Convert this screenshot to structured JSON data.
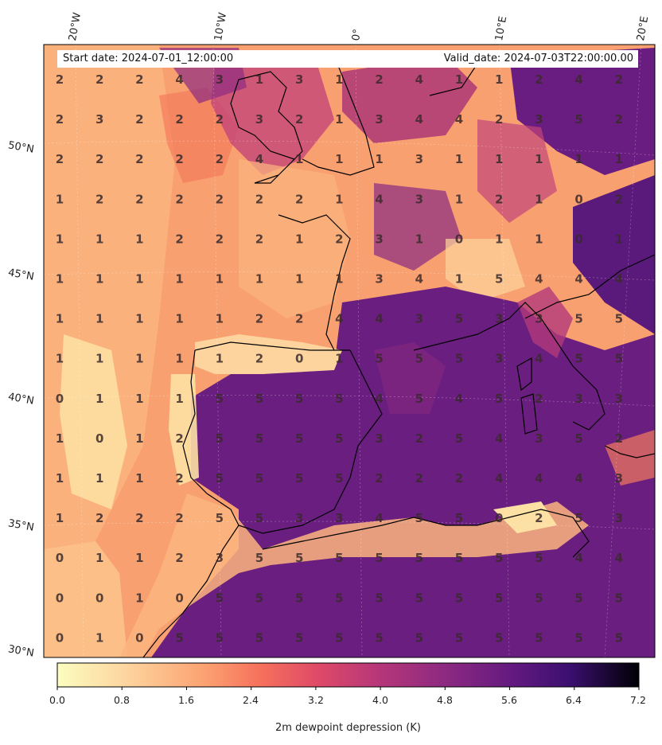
{
  "header": {
    "start_date": "Start date: 2024-07-01_12:00:00",
    "valid_date": "Valid_date: 2024-07-03T22:00:00.00"
  },
  "axes": {
    "lon_labels": [
      "20°W",
      "10°W",
      "0°",
      "10°E",
      "20°E"
    ],
    "lat_labels": [
      "50°N",
      "45°N",
      "40°N",
      "35°N",
      "30°N"
    ]
  },
  "colorbar": {
    "label": "2m dewpoint depression (K)",
    "ticks": [
      "0.0",
      "0.8",
      "1.6",
      "2.4",
      "3.2",
      "4.0",
      "4.8",
      "5.6",
      "6.4",
      "7.2"
    ],
    "min": 0.0,
    "max": 7.2,
    "colormap": "magma_r"
  },
  "grid_values": [
    [
      2,
      2,
      2,
      4,
      3,
      1,
      3,
      1,
      2,
      4,
      1,
      1,
      2,
      4,
      2
    ],
    [
      2,
      3,
      2,
      2,
      2,
      3,
      2,
      1,
      3,
      4,
      4,
      2,
      3,
      5,
      2
    ],
    [
      2,
      2,
      2,
      2,
      2,
      4,
      1,
      1,
      1,
      3,
      1,
      1,
      1,
      1,
      1
    ],
    [
      1,
      2,
      2,
      2,
      2,
      2,
      2,
      1,
      4,
      3,
      1,
      2,
      1,
      0,
      2
    ],
    [
      1,
      1,
      1,
      2,
      2,
      2,
      1,
      2,
      3,
      1,
      0,
      1,
      1,
      0,
      1
    ],
    [
      1,
      1,
      1,
      1,
      1,
      1,
      1,
      1,
      3,
      4,
      1,
      5,
      4,
      4,
      4
    ],
    [
      1,
      1,
      1,
      1,
      1,
      2,
      2,
      4,
      4,
      3,
      5,
      3,
      3,
      5,
      5
    ],
    [
      1,
      1,
      1,
      1,
      1,
      2,
      0,
      1,
      5,
      5,
      5,
      3,
      4,
      5,
      5
    ],
    [
      0,
      1,
      1,
      1,
      5,
      5,
      5,
      5,
      4,
      5,
      4,
      5,
      2,
      3,
      3
    ],
    [
      1,
      0,
      1,
      2,
      5,
      5,
      5,
      5,
      3,
      2,
      5,
      4,
      3,
      5,
      2
    ],
    [
      1,
      1,
      1,
      2,
      5,
      5,
      5,
      5,
      2,
      2,
      2,
      4,
      4,
      4,
      3
    ],
    [
      1,
      2,
      2,
      2,
      5,
      5,
      3,
      3,
      4,
      5,
      5,
      0,
      2,
      5,
      3
    ],
    [
      0,
      1,
      1,
      2,
      3,
      5,
      5,
      5,
      5,
      5,
      5,
      5,
      5,
      4,
      4
    ],
    [
      0,
      0,
      1,
      0,
      5,
      5,
      5,
      5,
      5,
      5,
      5,
      5,
      5,
      5,
      5
    ],
    [
      0,
      1,
      0,
      5,
      5,
      5,
      5,
      5,
      5,
      5,
      5,
      5,
      5,
      5,
      5
    ]
  ]
}
